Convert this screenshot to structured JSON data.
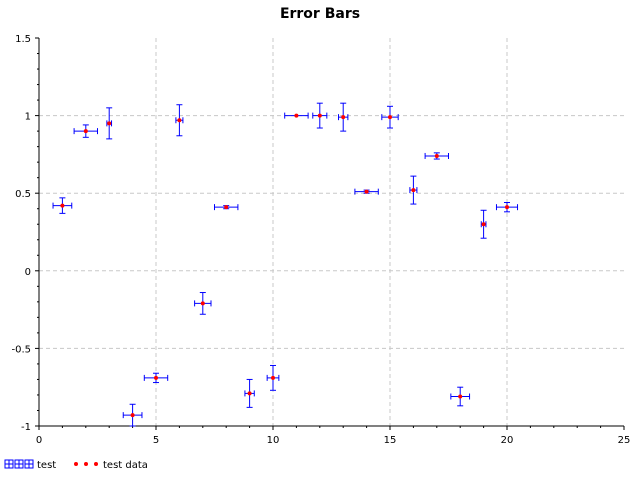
{
  "chart_data": {
    "type": "scatter",
    "title": "Error Bars",
    "xlabel": "",
    "ylabel": "",
    "xlim": [
      0,
      25
    ],
    "ylim": [
      -1,
      1.5
    ],
    "x_ticks": [
      "0",
      "5",
      "10",
      "15",
      "20",
      "25"
    ],
    "y_ticks": [
      "-1",
      "-0.5",
      "0",
      "0.5",
      "1",
      "1.5"
    ],
    "grid": true,
    "legend_position": "bottom-left",
    "series": [
      {
        "name": "test",
        "style": "error bars",
        "color": "#0000ff",
        "points": [
          {
            "x": 1,
            "y": 0.42,
            "xerr": 0.4,
            "yerr": 0.05
          },
          {
            "x": 2,
            "y": 0.9,
            "xerr": 0.5,
            "yerr": 0.04
          },
          {
            "x": 3,
            "y": 0.95,
            "xerr": 0.1,
            "yerr": 0.1
          },
          {
            "x": 4,
            "y": -0.93,
            "xerr": 0.4,
            "yerr": 0.07
          },
          {
            "x": 5,
            "y": -0.69,
            "xerr": 0.5,
            "yerr": 0.03
          },
          {
            "x": 6,
            "y": 0.97,
            "xerr": 0.15,
            "yerr": 0.1
          },
          {
            "x": 7,
            "y": -0.21,
            "xerr": 0.35,
            "yerr": 0.07
          },
          {
            "x": 8,
            "y": 0.41,
            "xerr": 0.5,
            "yerr": 0.01
          },
          {
            "x": 9,
            "y": -0.79,
            "xerr": 0.2,
            "yerr": 0.09
          },
          {
            "x": 10,
            "y": -0.69,
            "xerr": 0.25,
            "yerr": 0.08
          },
          {
            "x": 11,
            "y": 1.0,
            "xerr": 0.5,
            "yerr": 0.0
          },
          {
            "x": 12,
            "y": 1.0,
            "xerr": 0.3,
            "yerr": 0.08
          },
          {
            "x": 13,
            "y": 0.99,
            "xerr": 0.2,
            "yerr": 0.09
          },
          {
            "x": 14,
            "y": 0.51,
            "xerr": 0.5,
            "yerr": 0.01
          },
          {
            "x": 15,
            "y": 0.99,
            "xerr": 0.35,
            "yerr": 0.07
          },
          {
            "x": 16,
            "y": 0.52,
            "xerr": 0.15,
            "yerr": 0.09
          },
          {
            "x": 17,
            "y": 0.74,
            "xerr": 0.5,
            "yerr": 0.02
          },
          {
            "x": 18,
            "y": -0.81,
            "xerr": 0.4,
            "yerr": 0.06
          },
          {
            "x": 19,
            "y": 0.3,
            "xerr": 0.1,
            "yerr": 0.09
          },
          {
            "x": 20,
            "y": 0.41,
            "xerr": 0.45,
            "yerr": 0.03
          }
        ]
      },
      {
        "name": "test data",
        "style": "points",
        "color": "#ff0000",
        "points": [
          {
            "x": 1,
            "y": 0.42
          },
          {
            "x": 2,
            "y": 0.9
          },
          {
            "x": 3,
            "y": 0.95
          },
          {
            "x": 4,
            "y": -0.93
          },
          {
            "x": 5,
            "y": -0.69
          },
          {
            "x": 6,
            "y": 0.97
          },
          {
            "x": 7,
            "y": -0.21
          },
          {
            "x": 8,
            "y": 0.41
          },
          {
            "x": 9,
            "y": -0.79
          },
          {
            "x": 10,
            "y": -0.69
          },
          {
            "x": 11,
            "y": 1.0
          },
          {
            "x": 12,
            "y": 1.0
          },
          {
            "x": 13,
            "y": 0.99
          },
          {
            "x": 14,
            "y": 0.51
          },
          {
            "x": 15,
            "y": 0.99
          },
          {
            "x": 16,
            "y": 0.52
          },
          {
            "x": 17,
            "y": 0.74
          },
          {
            "x": 18,
            "y": -0.81
          },
          {
            "x": 19,
            "y": 0.3
          },
          {
            "x": 20,
            "y": 0.41
          }
        ]
      }
    ]
  }
}
